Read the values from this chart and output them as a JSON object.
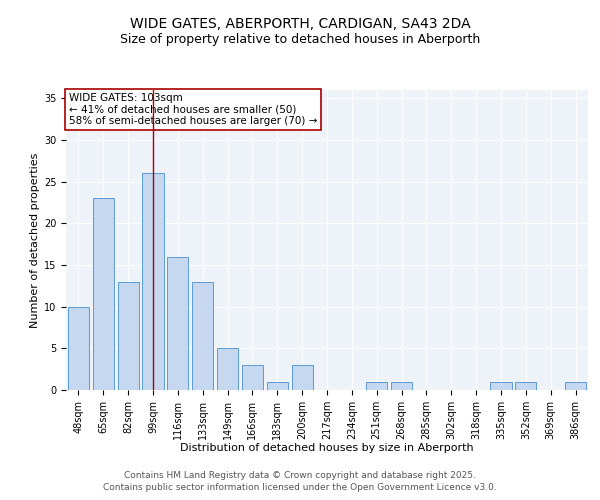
{
  "title": "WIDE GATES, ABERPORTH, CARDIGAN, SA43 2DA",
  "subtitle": "Size of property relative to detached houses in Aberporth",
  "xlabel": "Distribution of detached houses by size in Aberporth",
  "ylabel": "Number of detached properties",
  "categories": [
    "48sqm",
    "65sqm",
    "82sqm",
    "99sqm",
    "116sqm",
    "133sqm",
    "149sqm",
    "166sqm",
    "183sqm",
    "200sqm",
    "217sqm",
    "234sqm",
    "251sqm",
    "268sqm",
    "285sqm",
    "302sqm",
    "318sqm",
    "335sqm",
    "352sqm",
    "369sqm",
    "386sqm"
  ],
  "values": [
    10,
    23,
    13,
    26,
    16,
    13,
    5,
    3,
    1,
    3,
    0,
    0,
    1,
    1,
    0,
    0,
    0,
    1,
    1,
    0,
    1
  ],
  "bar_color": "#c5d8f0",
  "bar_edge_color": "#5b9bd5",
  "marker_line_index": 3,
  "marker_line_color": "#aa0000",
  "annotation_title": "WIDE GATES: 103sqm",
  "annotation_line1": "← 41% of detached houses are smaller (50)",
  "annotation_line2": "58% of semi-detached houses are larger (70) →",
  "annotation_box_color": "#ffffff",
  "annotation_box_edge": "#aa0000",
  "ylim": [
    0,
    36
  ],
  "yticks": [
    0,
    5,
    10,
    15,
    20,
    25,
    30,
    35
  ],
  "footer_line1": "Contains HM Land Registry data © Crown copyright and database right 2025.",
  "footer_line2": "Contains public sector information licensed under the Open Government Licence v3.0.",
  "background_color": "#eef2f9",
  "grid_color": "#ffffff",
  "title_fontsize": 10,
  "subtitle_fontsize": 9,
  "axis_label_fontsize": 8,
  "tick_fontsize": 7,
  "annotation_fontsize": 7.5,
  "footer_fontsize": 6.5
}
